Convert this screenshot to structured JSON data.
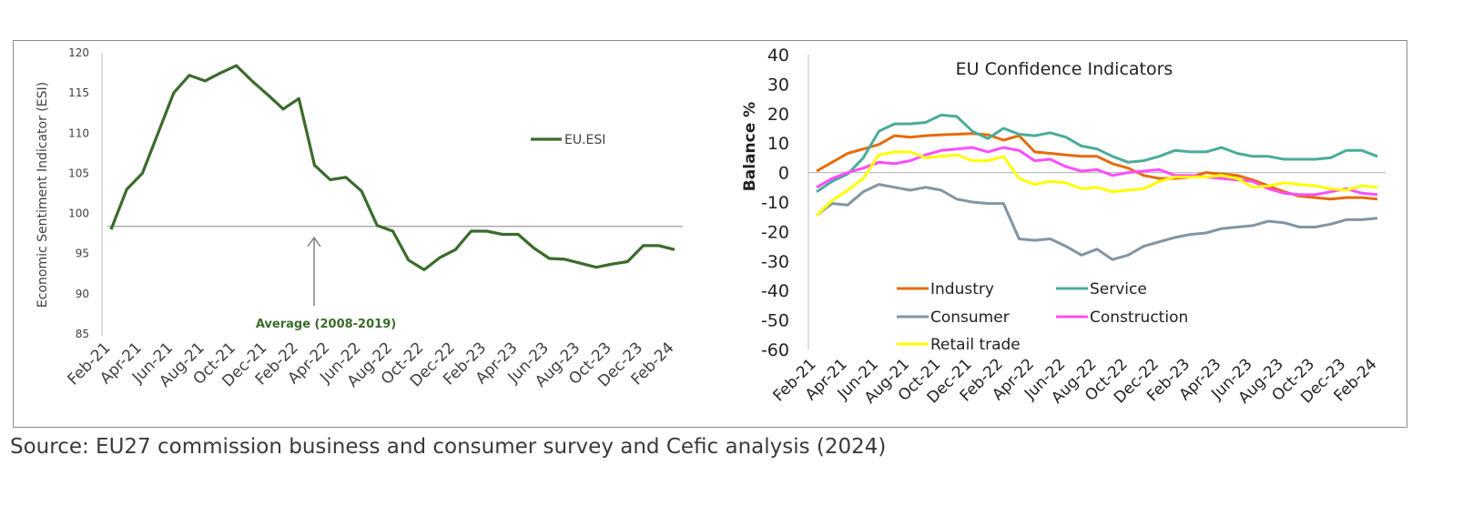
{
  "source_note": "Source: EU27 commission business and consumer survey and Cefic analysis (2024)",
  "chart_data": [
    {
      "type": "line",
      "title": "",
      "ylabel": "Economic Sentiment Indicator (ESI)",
      "xlabel": "",
      "ylim": [
        85,
        120
      ],
      "yticks": [
        85,
        90,
        95,
        100,
        105,
        110,
        115,
        120
      ],
      "x_months": [
        "Feb-21",
        "Mar-21",
        "Apr-21",
        "May-21",
        "Jun-21",
        "Jul-21",
        "Aug-21",
        "Sep-21",
        "Oct-21",
        "Nov-21",
        "Dec-21",
        "Jan-22",
        "Feb-22",
        "Mar-22",
        "Apr-22",
        "May-22",
        "Jun-22",
        "Jul-22",
        "Aug-22",
        "Sep-22",
        "Oct-22",
        "Nov-22",
        "Dec-22",
        "Jan-23",
        "Feb-23",
        "Mar-23",
        "Apr-23",
        "May-23",
        "Jun-23",
        "Jul-23",
        "Aug-23",
        "Sep-23",
        "Oct-23",
        "Nov-23",
        "Dec-23",
        "Jan-24",
        "Feb-24"
      ],
      "tick_labels": [
        "Feb-21",
        "Apr-21",
        "Jun-21",
        "Aug-21",
        "Oct-21",
        "Dec-21",
        "Feb-22",
        "Apr-22",
        "Jun-22",
        "Aug-22",
        "Oct-22",
        "Dec-22",
        "Feb-23",
        "Apr-23",
        "Jun-23",
        "Aug-23",
        "Oct-23",
        "Dec-23",
        "Feb-24"
      ],
      "series": [
        {
          "name": "EU.ESI",
          "color": "#3b6b2c",
          "values": [
            98.0,
            103.0,
            105.0,
            110.0,
            115.0,
            117.2,
            116.5,
            117.5,
            118.4,
            116.5,
            114.8,
            113.0,
            114.3,
            106.0,
            104.2,
            104.5,
            102.8,
            98.5,
            97.8,
            94.2,
            93.0,
            94.5,
            95.5,
            97.8,
            97.8,
            97.4,
            97.4,
            95.7,
            94.4,
            94.3,
            93.8,
            93.3,
            93.7,
            94.0,
            96.0,
            96.0,
            95.5
          ]
        }
      ],
      "legend_position": "middle-right",
      "reference_line": {
        "value": 98.4,
        "label": "Average (2008-2019)",
        "label_color": "#3b6b2c",
        "arrow_color": "#7f7f7f"
      }
    },
    {
      "type": "line",
      "title": "EU Confidence Indicators",
      "ylabel": "Balance %",
      "xlabel": "",
      "ylim": [
        -60,
        40
      ],
      "yticks": [
        -60,
        -50,
        -40,
        -30,
        -20,
        -10,
        0,
        10,
        20,
        30,
        40
      ],
      "tick_labels": [
        "Feb-21",
        "Apr-21",
        "Jun-21",
        "Aug-21",
        "Oct-21",
        "Dec-21",
        "Feb-22",
        "Apr-22",
        "Jun-22",
        "Aug-22",
        "Oct-22",
        "Dec-22",
        "Feb-23",
        "Apr-23",
        "Jun-23",
        "Aug-23",
        "Oct-23",
        "Dec-23",
        "Feb-24"
      ],
      "legend_position": "lower-left",
      "series": [
        {
          "name": "Industry",
          "color": "#e36c0a",
          "values": [
            0.5,
            3.5,
            6.5,
            8.0,
            9.5,
            12.5,
            12.0,
            12.5,
            12.8,
            13.0,
            13.2,
            12.8,
            11.0,
            12.5,
            7.0,
            6.5,
            6.0,
            5.5,
            5.5,
            3.0,
            1.5,
            -1.0,
            -2.0,
            -2.0,
            -1.5,
            0.0,
            -0.5,
            -1.0,
            -2.5,
            -4.5,
            -6.5,
            -8.0,
            -8.5,
            -9.0,
            -8.5,
            -8.5,
            -9.0
          ]
        },
        {
          "name": "Service",
          "color": "#4bab99",
          "values": [
            -6.5,
            -3.0,
            -0.5,
            5.0,
            14.0,
            16.5,
            16.5,
            17.0,
            19.5,
            19.0,
            14.0,
            11.5,
            15.0,
            13.0,
            12.5,
            13.5,
            12.0,
            9.0,
            8.0,
            5.5,
            3.5,
            4.0,
            5.5,
            7.5,
            7.0,
            7.0,
            8.5,
            6.5,
            5.5,
            5.5,
            4.5,
            4.5,
            4.5,
            5.0,
            7.5,
            7.5,
            5.5
          ]
        },
        {
          "name": "Consumer",
          "color": "#8494a2",
          "values": [
            -14.5,
            -10.5,
            -11.0,
            -6.5,
            -4.0,
            -5.0,
            -6.0,
            -5.0,
            -6.0,
            -9.0,
            -10.0,
            -10.5,
            -10.5,
            -22.5,
            -23.0,
            -22.5,
            -25.0,
            -28.0,
            -26.0,
            -29.5,
            -28.0,
            -25.0,
            -23.5,
            -22.0,
            -21.0,
            -20.5,
            -19.0,
            -18.5,
            -18.0,
            -16.5,
            -17.0,
            -18.5,
            -18.5,
            -17.5,
            -16.0,
            -16.0,
            -15.5
          ]
        },
        {
          "name": "Construction",
          "color": "#ff4dff",
          "values": [
            -5.0,
            -2.0,
            0.0,
            1.5,
            3.5,
            3.0,
            4.0,
            6.0,
            7.5,
            8.0,
            8.5,
            7.0,
            8.5,
            7.5,
            4.0,
            4.5,
            2.0,
            0.5,
            1.0,
            -1.0,
            0.0,
            0.5,
            1.0,
            -1.0,
            -1.0,
            -1.5,
            -2.0,
            -2.5,
            -3.0,
            -5.5,
            -7.0,
            -7.5,
            -7.5,
            -6.5,
            -5.5,
            -7.0,
            -7.5
          ]
        },
        {
          "name": "Retail trade",
          "color": "#ffff00",
          "values": [
            -14.5,
            -9.5,
            -6.0,
            -2.0,
            6.0,
            7.0,
            7.0,
            5.0,
            5.5,
            6.0,
            4.0,
            4.0,
            5.5,
            -2.0,
            -4.0,
            -3.0,
            -3.5,
            -5.5,
            -5.0,
            -6.5,
            -6.0,
            -5.5,
            -3.0,
            -1.5,
            -1.5,
            -1.5,
            -1.0,
            -2.0,
            -5.0,
            -4.5,
            -3.5,
            -4.0,
            -4.5,
            -5.5,
            -6.0,
            -4.5,
            -5.0
          ]
        }
      ]
    }
  ]
}
